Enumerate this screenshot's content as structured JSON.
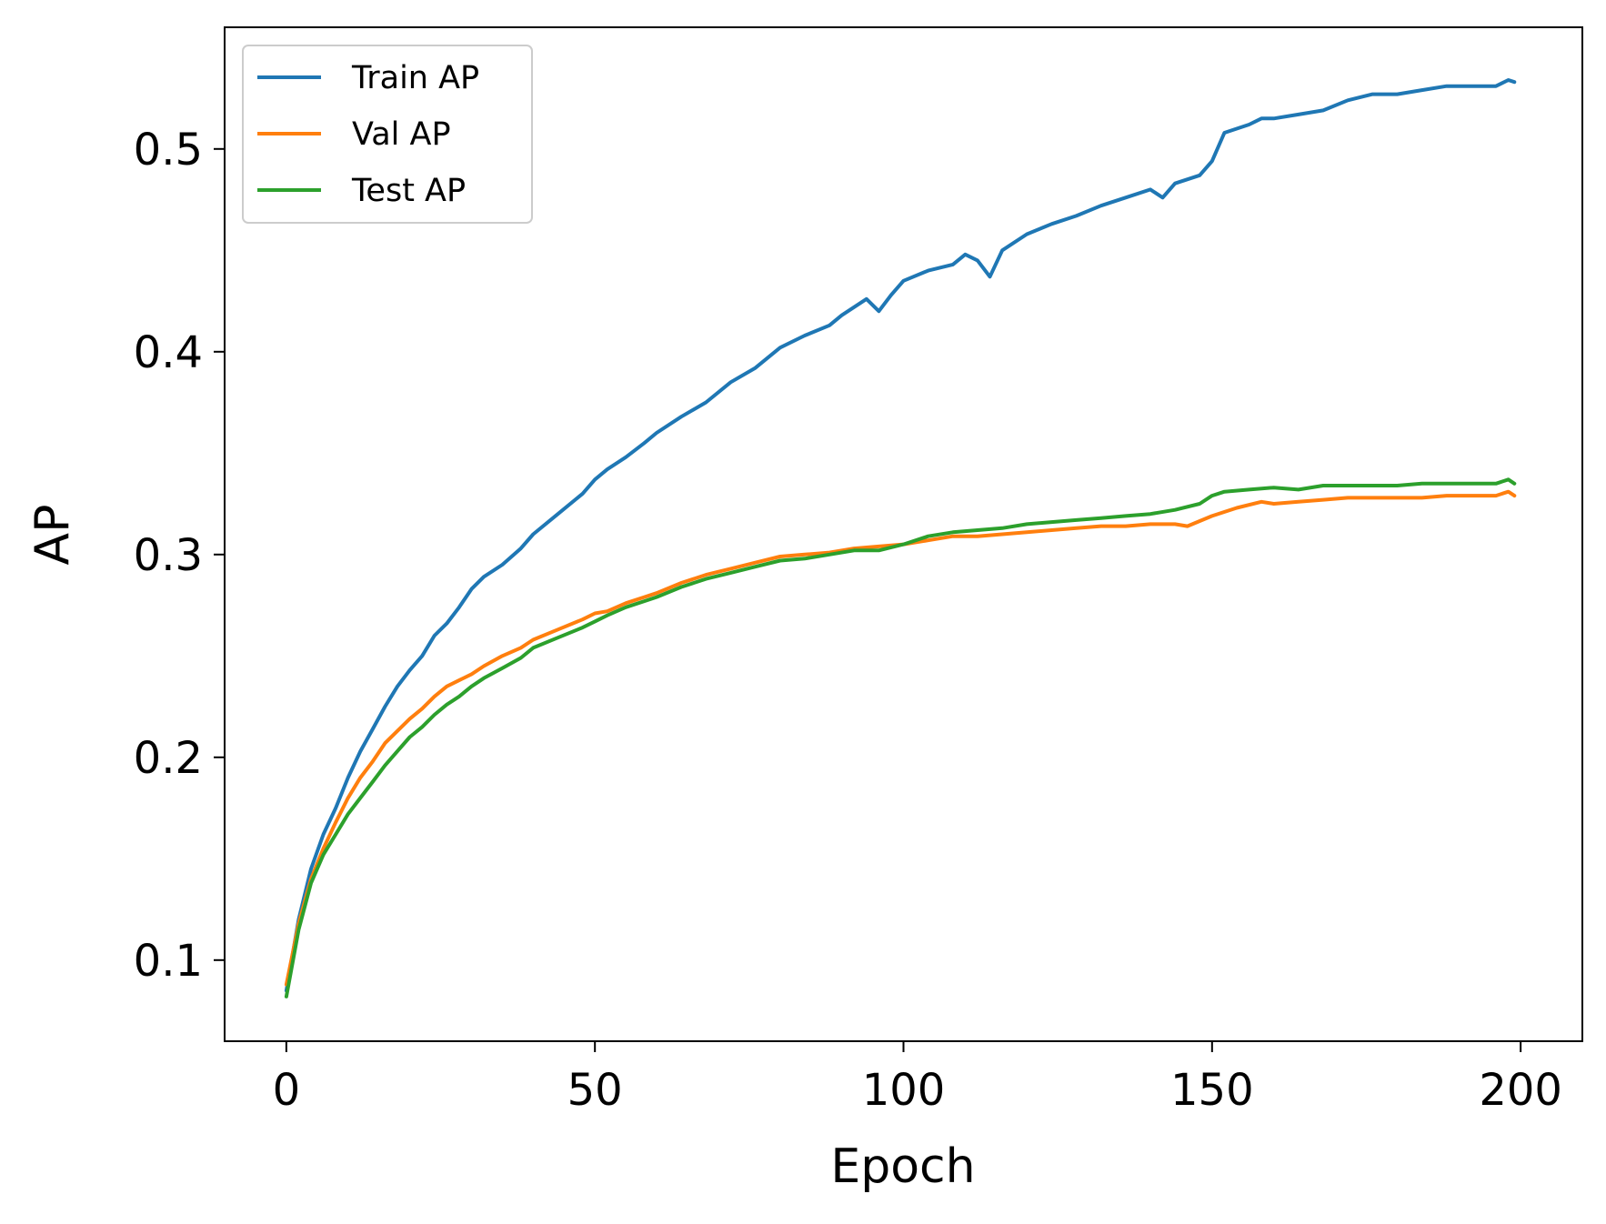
{
  "chart_data": {
    "type": "line",
    "title": "",
    "xlabel": "Epoch",
    "ylabel": "AP",
    "xlim": [
      -10,
      210
    ],
    "ylim": [
      0.06,
      0.56
    ],
    "xticks": [
      0,
      50,
      100,
      150,
      200
    ],
    "xtick_labels": [
      "0",
      "50",
      "100",
      "150",
      "200"
    ],
    "yticks": [
      0.1,
      0.2,
      0.3,
      0.4,
      0.5
    ],
    "ytick_labels": [
      "0.1",
      "0.2",
      "0.3",
      "0.4",
      "0.5"
    ],
    "grid": false,
    "legend_position": "top-left",
    "series": [
      {
        "name": "Train AP",
        "color": "#1f77b4",
        "x": [
          0,
          2,
          4,
          6,
          8,
          10,
          12,
          14,
          16,
          18,
          20,
          22,
          24,
          26,
          28,
          30,
          32,
          35,
          38,
          40,
          44,
          48,
          50,
          52,
          55,
          58,
          60,
          64,
          68,
          72,
          76,
          80,
          84,
          88,
          90,
          94,
          96,
          98,
          100,
          104,
          108,
          110,
          112,
          114,
          116,
          120,
          124,
          128,
          132,
          136,
          140,
          142,
          144,
          148,
          150,
          152,
          156,
          158,
          160,
          164,
          168,
          172,
          176,
          180,
          184,
          188,
          192,
          196,
          198,
          199
        ],
        "values": [
          0.085,
          0.12,
          0.145,
          0.162,
          0.175,
          0.19,
          0.203,
          0.214,
          0.225,
          0.235,
          0.243,
          0.25,
          0.26,
          0.266,
          0.274,
          0.283,
          0.289,
          0.295,
          0.303,
          0.31,
          0.32,
          0.33,
          0.337,
          0.342,
          0.348,
          0.355,
          0.36,
          0.368,
          0.375,
          0.385,
          0.392,
          0.402,
          0.408,
          0.413,
          0.418,
          0.426,
          0.42,
          0.428,
          0.435,
          0.44,
          0.443,
          0.448,
          0.445,
          0.437,
          0.45,
          0.458,
          0.463,
          0.467,
          0.472,
          0.476,
          0.48,
          0.476,
          0.483,
          0.487,
          0.494,
          0.508,
          0.512,
          0.515,
          0.515,
          0.517,
          0.519,
          0.524,
          0.527,
          0.527,
          0.529,
          0.531,
          0.531,
          0.531,
          0.534,
          0.533
        ]
      },
      {
        "name": "Val AP",
        "color": "#ff7f0e",
        "x": [
          0,
          2,
          4,
          6,
          8,
          10,
          12,
          14,
          16,
          18,
          20,
          22,
          24,
          26,
          28,
          30,
          32,
          35,
          38,
          40,
          44,
          48,
          50,
          52,
          55,
          58,
          60,
          64,
          68,
          72,
          76,
          80,
          84,
          88,
          92,
          96,
          100,
          104,
          108,
          112,
          116,
          120,
          124,
          128,
          132,
          136,
          140,
          144,
          146,
          150,
          154,
          158,
          160,
          164,
          168,
          172,
          176,
          180,
          184,
          188,
          192,
          196,
          198,
          199
        ],
        "values": [
          0.088,
          0.118,
          0.14,
          0.155,
          0.168,
          0.18,
          0.19,
          0.198,
          0.207,
          0.213,
          0.219,
          0.224,
          0.23,
          0.235,
          0.238,
          0.241,
          0.245,
          0.25,
          0.254,
          0.258,
          0.263,
          0.268,
          0.271,
          0.272,
          0.276,
          0.279,
          0.281,
          0.286,
          0.29,
          0.293,
          0.296,
          0.299,
          0.3,
          0.301,
          0.303,
          0.304,
          0.305,
          0.307,
          0.309,
          0.309,
          0.31,
          0.311,
          0.312,
          0.313,
          0.314,
          0.314,
          0.315,
          0.315,
          0.314,
          0.319,
          0.323,
          0.326,
          0.325,
          0.326,
          0.327,
          0.328,
          0.328,
          0.328,
          0.328,
          0.329,
          0.329,
          0.329,
          0.331,
          0.329
        ]
      },
      {
        "name": "Test AP",
        "color": "#2ca02c",
        "x": [
          0,
          2,
          4,
          6,
          8,
          10,
          12,
          14,
          16,
          18,
          20,
          22,
          24,
          26,
          28,
          30,
          32,
          35,
          38,
          40,
          44,
          48,
          50,
          52,
          55,
          58,
          60,
          64,
          68,
          72,
          76,
          80,
          84,
          88,
          92,
          96,
          100,
          104,
          108,
          112,
          116,
          120,
          124,
          128,
          132,
          136,
          140,
          144,
          148,
          150,
          152,
          156,
          160,
          164,
          168,
          172,
          176,
          180,
          184,
          188,
          192,
          196,
          198,
          199
        ],
        "values": [
          0.082,
          0.115,
          0.138,
          0.152,
          0.162,
          0.172,
          0.18,
          0.188,
          0.196,
          0.203,
          0.21,
          0.215,
          0.221,
          0.226,
          0.23,
          0.235,
          0.239,
          0.244,
          0.249,
          0.254,
          0.259,
          0.264,
          0.267,
          0.27,
          0.274,
          0.277,
          0.279,
          0.284,
          0.288,
          0.291,
          0.294,
          0.297,
          0.298,
          0.3,
          0.302,
          0.302,
          0.305,
          0.309,
          0.311,
          0.312,
          0.313,
          0.315,
          0.316,
          0.317,
          0.318,
          0.319,
          0.32,
          0.322,
          0.325,
          0.329,
          0.331,
          0.332,
          0.333,
          0.332,
          0.334,
          0.334,
          0.334,
          0.334,
          0.335,
          0.335,
          0.335,
          0.335,
          0.337,
          0.335
        ]
      }
    ]
  }
}
